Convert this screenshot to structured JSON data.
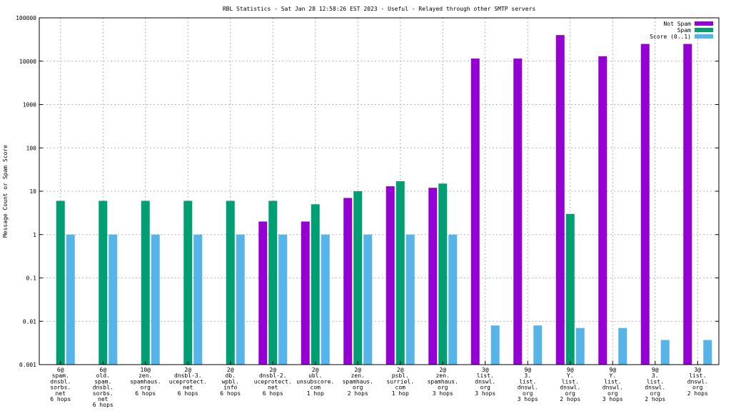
{
  "chart_data": {
    "type": "bar",
    "title": "RBL Statistics - Sat Jan 28 12:58:26 EST 2023 - Useful - Relayed through other SMTP servers",
    "xlabel": "",
    "ylabel": "Message Count or Spam Score",
    "yscale": "log",
    "ylim": [
      0.001,
      100000
    ],
    "yticks": [
      "0.001",
      "0.01",
      "0.1",
      "1",
      "10",
      "100",
      "1000",
      "10000",
      "100000"
    ],
    "grid": true,
    "legend_position": "top-right",
    "categories": [
      [
        "6@",
        "spam.",
        "dnsbl.",
        "sorbs.",
        "net",
        "6 hops"
      ],
      [
        "6@",
        "old.",
        "spam.",
        "dnsbl.",
        "sorbs.",
        "net",
        "6 hops"
      ],
      [
        "10@",
        "zen.",
        "spamhaus.",
        "org",
        "6 hops"
      ],
      [
        "2@",
        "dnsbl-3.",
        "uceprotect.",
        "net",
        "6 hops"
      ],
      [
        "2@",
        "db.",
        "wpbl.",
        "info",
        "6 hops"
      ],
      [
        "2@",
        "dnsbl-2.",
        "uceprotect.",
        "net",
        "6 hops"
      ],
      [
        "2@",
        "ubl.",
        "unsubscore.",
        "com",
        "1 hop"
      ],
      [
        "2@",
        "zen.",
        "spamhaus.",
        "org",
        "2 hops"
      ],
      [
        "2@",
        "psbl.",
        "surriel.",
        "com",
        "1 hop"
      ],
      [
        "2@",
        "zen.",
        "spamhaus.",
        "org",
        "3 hops"
      ],
      [
        "3@",
        "list.",
        "dnswl.",
        "org",
        "3 hops"
      ],
      [
        "9@",
        "3.",
        "list.",
        "dnswl.",
        "org",
        "3 hops"
      ],
      [
        "9@",
        "Y.",
        "list.",
        "dnswl.",
        "org",
        "2 hops"
      ],
      [
        "9@",
        "Y.",
        "list.",
        "dnswl.",
        "org",
        "3 hops"
      ],
      [
        "9@",
        "3.",
        "list.",
        "dnswl.",
        "org",
        "2 hops"
      ],
      [
        "3@",
        "list.",
        "dnswl.",
        "org",
        "2 hops"
      ]
    ],
    "series": [
      {
        "name": "Not Spam",
        "color": "#9400d3",
        "values": [
          null,
          null,
          null,
          null,
          null,
          2,
          2,
          7,
          13,
          12,
          11500,
          11500,
          40000,
          13000,
          25000,
          25000
        ]
      },
      {
        "name": "Spam",
        "color": "#009e73",
        "values": [
          6,
          6,
          6,
          6,
          6,
          6,
          5,
          10,
          17,
          15,
          null,
          null,
          3,
          null,
          null,
          null
        ]
      },
      {
        "name": "Score (0..1)",
        "color": "#56b4e9",
        "values": [
          1,
          1,
          1,
          1,
          1,
          1,
          1,
          1,
          1,
          1,
          0.008,
          0.008,
          0.007,
          0.007,
          0.0037,
          0.0037
        ]
      }
    ]
  }
}
